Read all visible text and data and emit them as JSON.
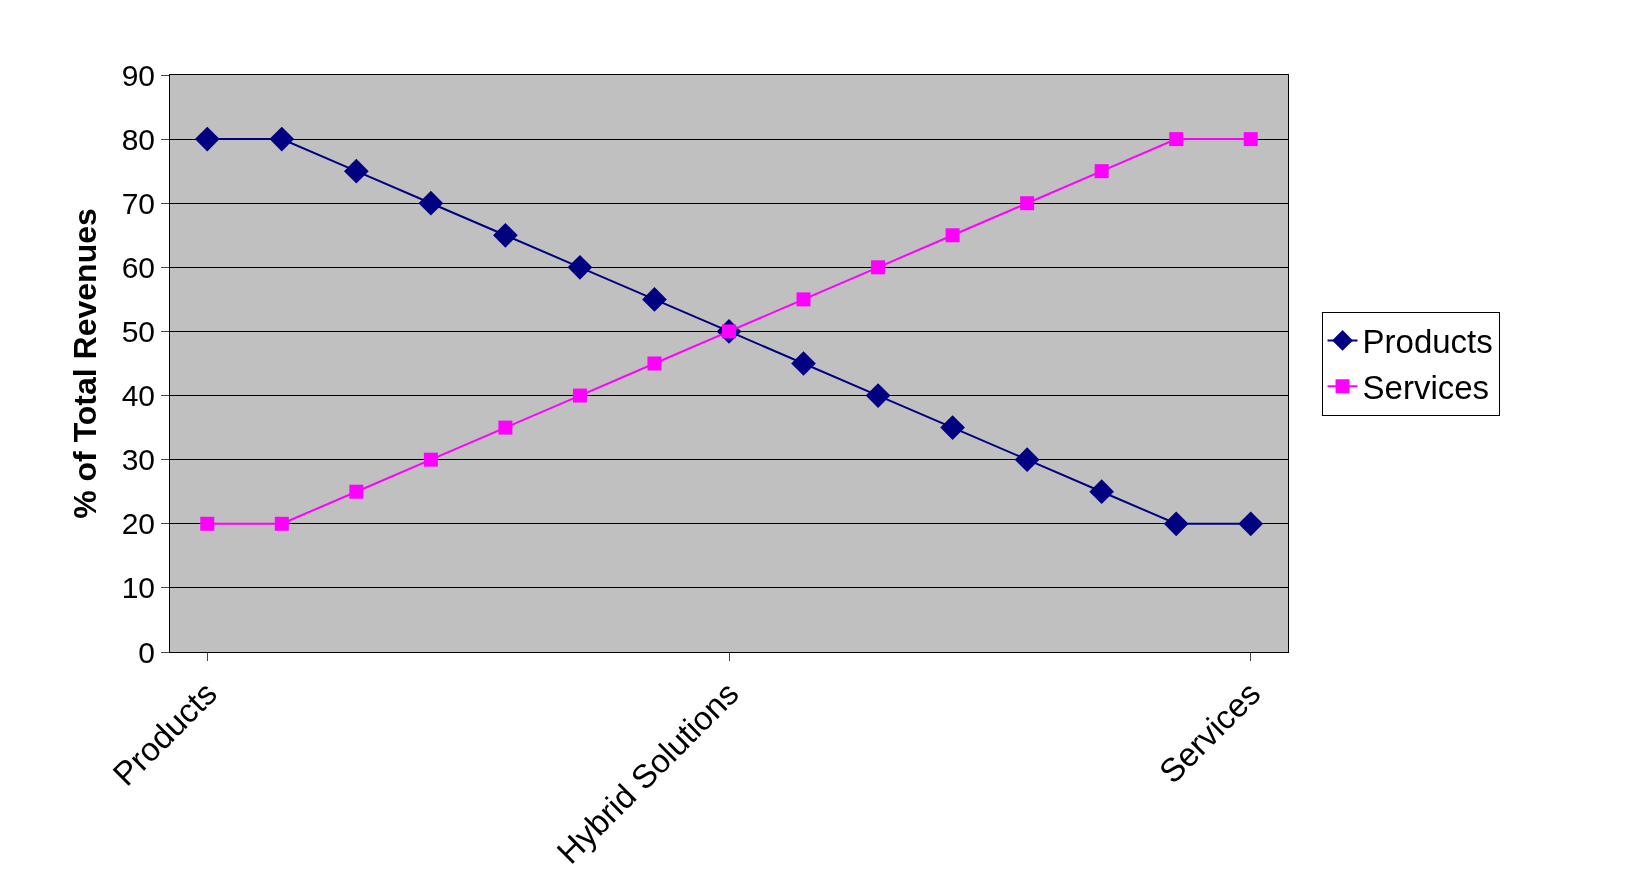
{
  "chart_data": {
    "type": "line",
    "ylabel": "% of Total Revenues",
    "categories": [
      "Products",
      null,
      null,
      null,
      null,
      null,
      null,
      "Hybrid Solutions",
      null,
      null,
      null,
      null,
      null,
      null,
      "Services"
    ],
    "series": [
      {
        "name": "Products",
        "color": "#000080",
        "marker": "diamond",
        "values": [
          80,
          80,
          75,
          70,
          65,
          60,
          55,
          50,
          45,
          40,
          35,
          30,
          25,
          20,
          20
        ]
      },
      {
        "name": "Services",
        "color": "#ff00ff",
        "marker": "square",
        "values": [
          20,
          20,
          25,
          30,
          35,
          40,
          45,
          50,
          55,
          60,
          65,
          70,
          75,
          80,
          80
        ]
      }
    ],
    "ylim": [
      0,
      90
    ],
    "yticks": [
      0,
      10,
      20,
      30,
      40,
      50,
      60,
      70,
      80,
      90
    ],
    "grid": "y",
    "legend": "right",
    "line_style": "solid"
  }
}
